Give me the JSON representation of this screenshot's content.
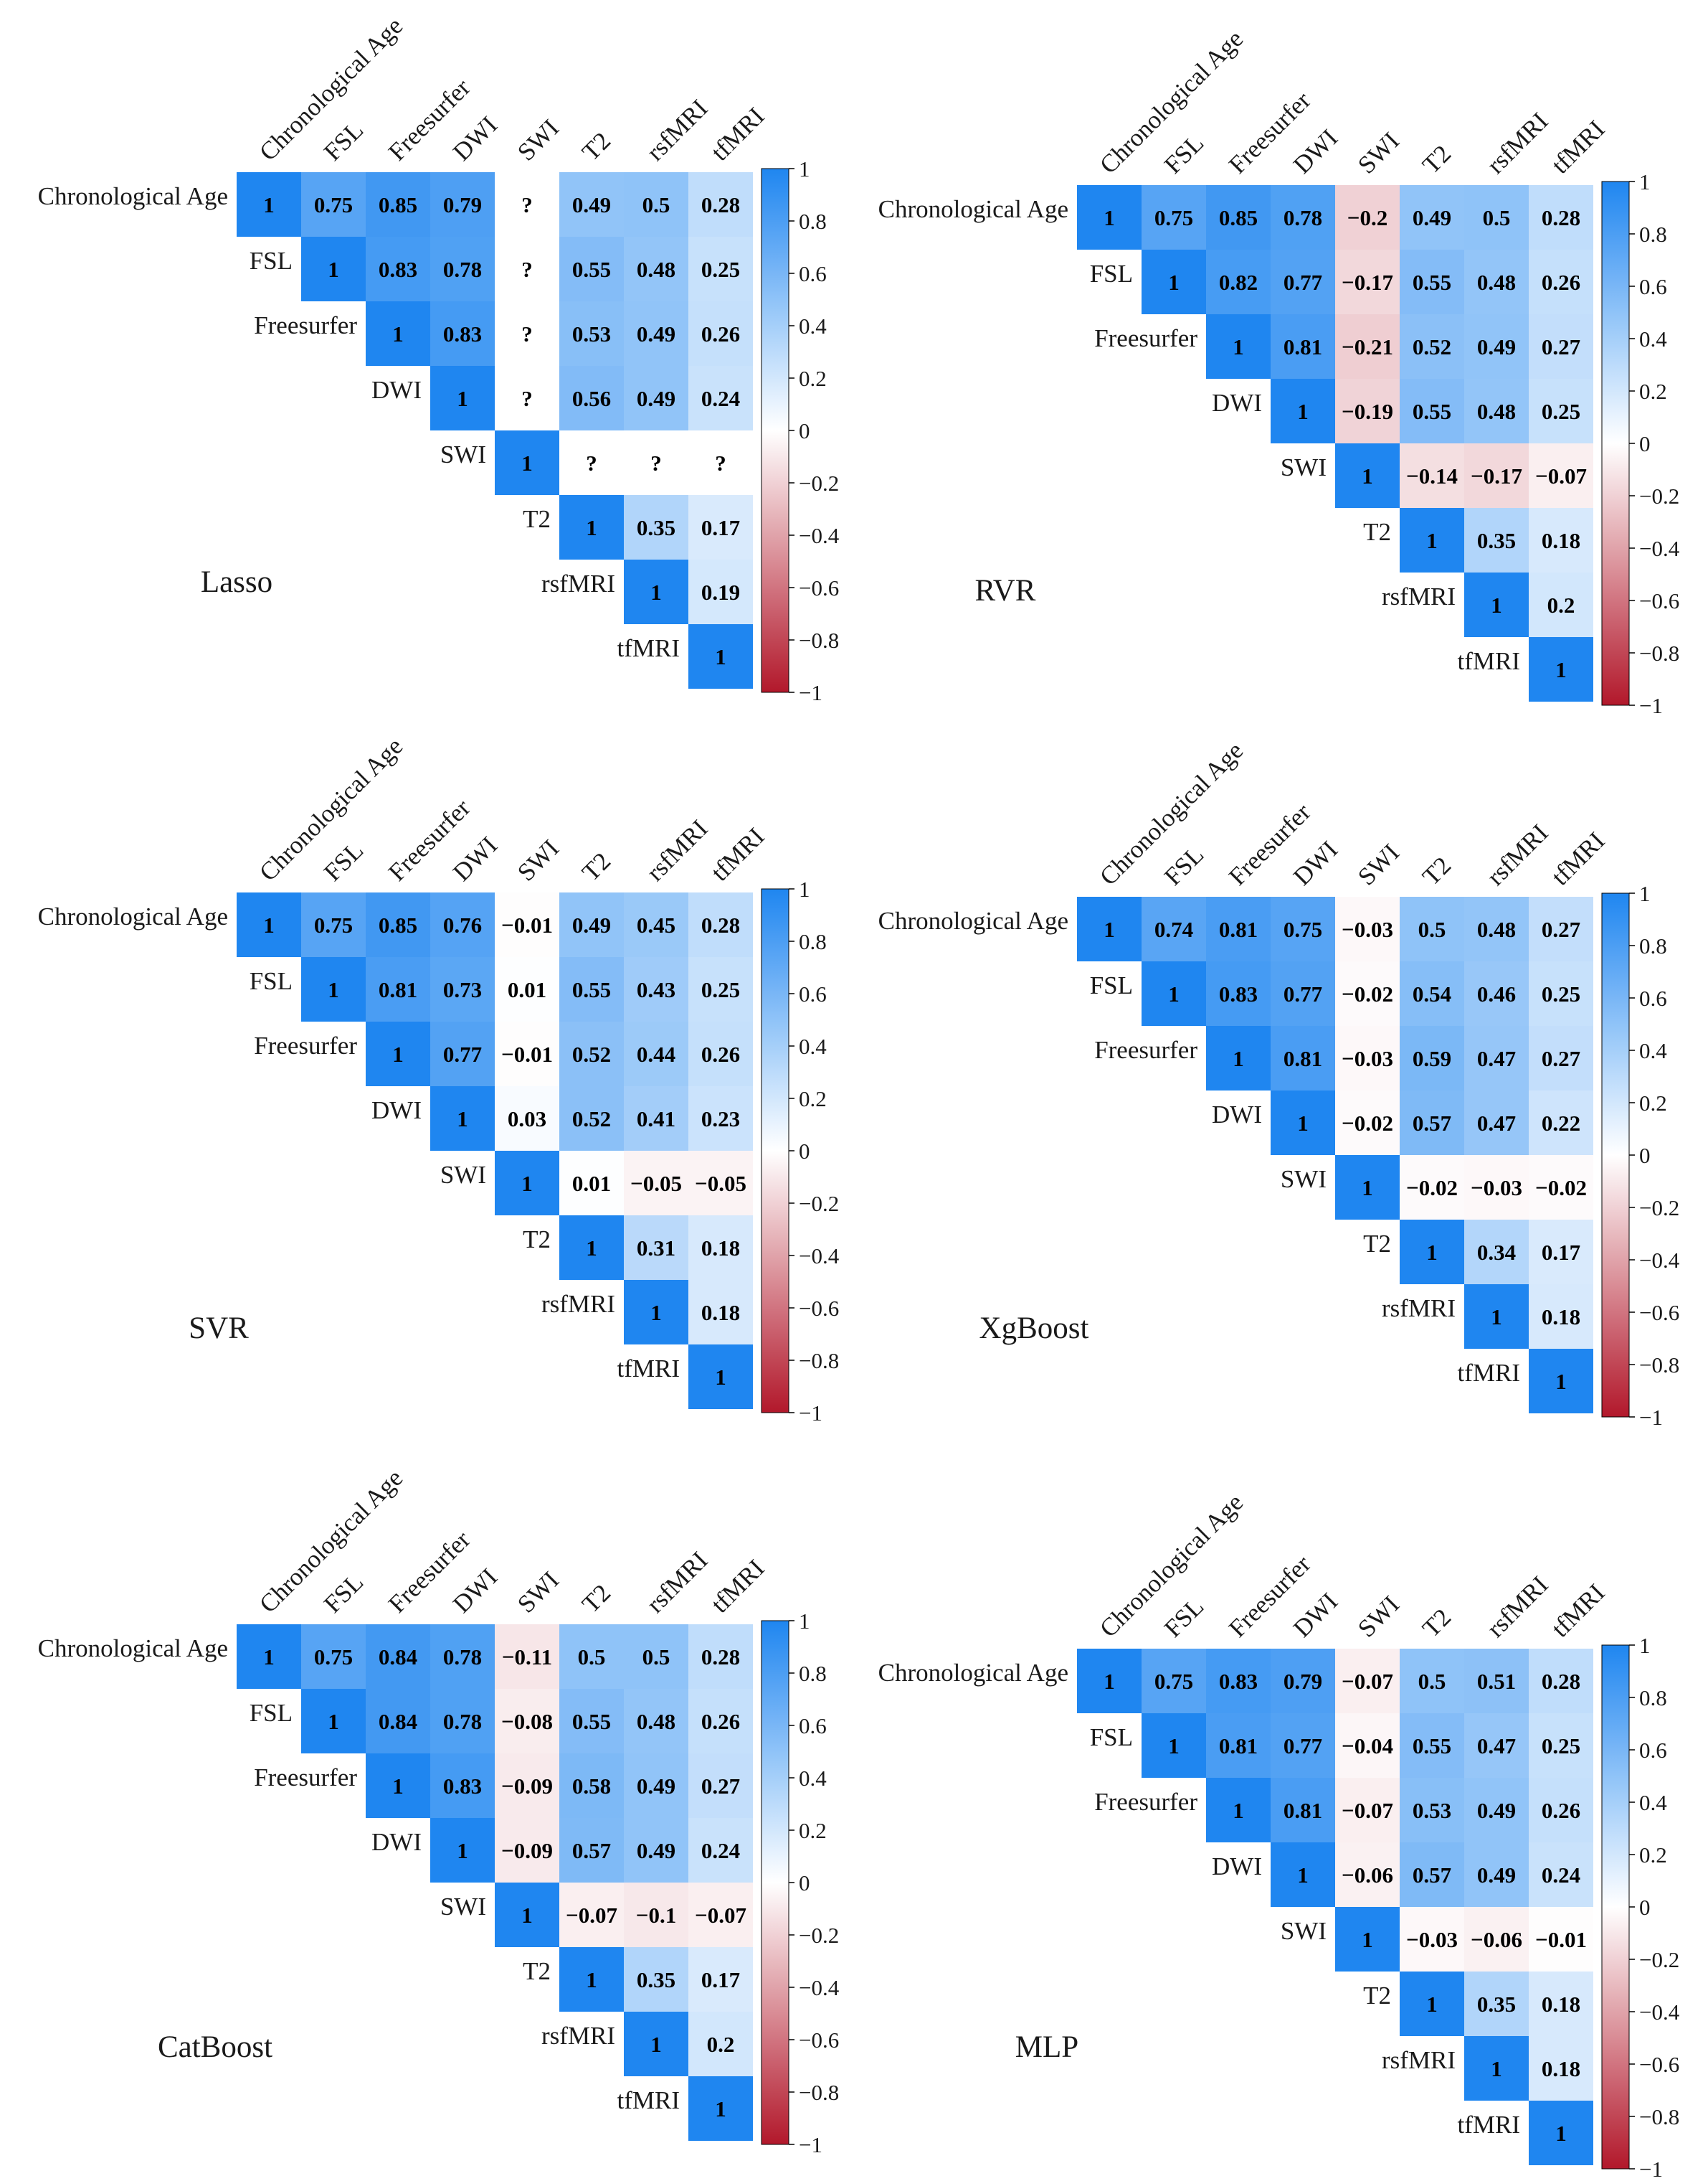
{
  "figure": {
    "labels": [
      "Chronological Age",
      "FSL",
      "Freesurfer",
      "DWI",
      "SWI",
      "T2",
      "rsfMRI",
      "tfMRI"
    ],
    "colorbar_ticks": [
      "1",
      "0.8",
      "0.6",
      "0.4",
      "0.2",
      "0",
      "−0.2",
      "−0.4",
      "−0.6",
      "−0.8",
      "−1"
    ],
    "colors": {
      "positive": "#1f86f0",
      "neutral": "#ffffff",
      "negative": "#b2182b"
    }
  },
  "chart_data": [
    {
      "type": "heatmap",
      "title": "Lasso",
      "vmin": -1,
      "vmax": 1,
      "rows": [
        [
          "1",
          "0.75",
          "0.85",
          "0.79",
          "?",
          "0.49",
          "0.5",
          "0.28"
        ],
        [
          "1",
          "0.83",
          "0.78",
          "?",
          "0.55",
          "0.48",
          "0.25"
        ],
        [
          "1",
          "0.83",
          "?",
          "0.53",
          "0.49",
          "0.26"
        ],
        [
          "1",
          "?",
          "0.56",
          "0.49",
          "0.24"
        ],
        [
          "1",
          "?",
          "?",
          "?"
        ],
        [
          "1",
          "0.35",
          "0.17"
        ],
        [
          "1",
          "0.19"
        ],
        [
          "1"
        ]
      ]
    },
    {
      "type": "heatmap",
      "title": "RVR",
      "vmin": -1,
      "vmax": 1,
      "rows": [
        [
          "1",
          "0.75",
          "0.85",
          "0.78",
          "−0.2",
          "0.49",
          "0.5",
          "0.28"
        ],
        [
          "1",
          "0.82",
          "0.77",
          "−0.17",
          "0.55",
          "0.48",
          "0.26"
        ],
        [
          "1",
          "0.81",
          "−0.21",
          "0.52",
          "0.49",
          "0.27"
        ],
        [
          "1",
          "−0.19",
          "0.55",
          "0.48",
          "0.25"
        ],
        [
          "1",
          "−0.14",
          "−0.17",
          "−0.07"
        ],
        [
          "1",
          "0.35",
          "0.18"
        ],
        [
          "1",
          "0.2"
        ],
        [
          "1"
        ]
      ]
    },
    {
      "type": "heatmap",
      "title": "SVR",
      "vmin": -1,
      "vmax": 1,
      "rows": [
        [
          "1",
          "0.75",
          "0.85",
          "0.76",
          "−0.01",
          "0.49",
          "0.45",
          "0.28"
        ],
        [
          "1",
          "0.81",
          "0.73",
          "0.01",
          "0.55",
          "0.43",
          "0.25"
        ],
        [
          "1",
          "0.77",
          "−0.01",
          "0.52",
          "0.44",
          "0.26"
        ],
        [
          "1",
          "0.03",
          "0.52",
          "0.41",
          "0.23"
        ],
        [
          "1",
          "0.01",
          "−0.05",
          "−0.05"
        ],
        [
          "1",
          "0.31",
          "0.18"
        ],
        [
          "1",
          "0.18"
        ],
        [
          "1"
        ]
      ]
    },
    {
      "type": "heatmap",
      "title": "XgBoost",
      "vmin": -1,
      "vmax": 1,
      "rows": [
        [
          "1",
          "0.74",
          "0.81",
          "0.75",
          "−0.03",
          "0.5",
          "0.48",
          "0.27"
        ],
        [
          "1",
          "0.83",
          "0.77",
          "−0.02",
          "0.54",
          "0.46",
          "0.25"
        ],
        [
          "1",
          "0.81",
          "−0.03",
          "0.59",
          "0.47",
          "0.27"
        ],
        [
          "1",
          "−0.02",
          "0.57",
          "0.47",
          "0.22"
        ],
        [
          "1",
          "−0.02",
          "−0.03",
          "−0.02"
        ],
        [
          "1",
          "0.34",
          "0.17"
        ],
        [
          "1",
          "0.18"
        ],
        [
          "1"
        ]
      ]
    },
    {
      "type": "heatmap",
      "title": "CatBoost",
      "vmin": -1,
      "vmax": 1,
      "rows": [
        [
          "1",
          "0.75",
          "0.84",
          "0.78",
          "−0.11",
          "0.5",
          "0.5",
          "0.28"
        ],
        [
          "1",
          "0.84",
          "0.78",
          "−0.08",
          "0.55",
          "0.48",
          "0.26"
        ],
        [
          "1",
          "0.83",
          "−0.09",
          "0.58",
          "0.49",
          "0.27"
        ],
        [
          "1",
          "−0.09",
          "0.57",
          "0.49",
          "0.24"
        ],
        [
          "1",
          "−0.07",
          "−0.1",
          "−0.07"
        ],
        [
          "1",
          "0.35",
          "0.17"
        ],
        [
          "1",
          "0.2"
        ],
        [
          "1"
        ]
      ]
    },
    {
      "type": "heatmap",
      "title": "MLP",
      "vmin": -1,
      "vmax": 1,
      "rows": [
        [
          "1",
          "0.75",
          "0.83",
          "0.79",
          "−0.07",
          "0.5",
          "0.51",
          "0.28"
        ],
        [
          "1",
          "0.81",
          "0.77",
          "−0.04",
          "0.55",
          "0.47",
          "0.25"
        ],
        [
          "1",
          "0.81",
          "−0.07",
          "0.53",
          "0.49",
          "0.26"
        ],
        [
          "1",
          "−0.06",
          "0.57",
          "0.49",
          "0.24"
        ],
        [
          "1",
          "−0.03",
          "−0.06",
          "−0.01"
        ],
        [
          "1",
          "0.35",
          "0.18"
        ],
        [
          "1",
          "0.18"
        ],
        [
          "1"
        ]
      ]
    }
  ]
}
